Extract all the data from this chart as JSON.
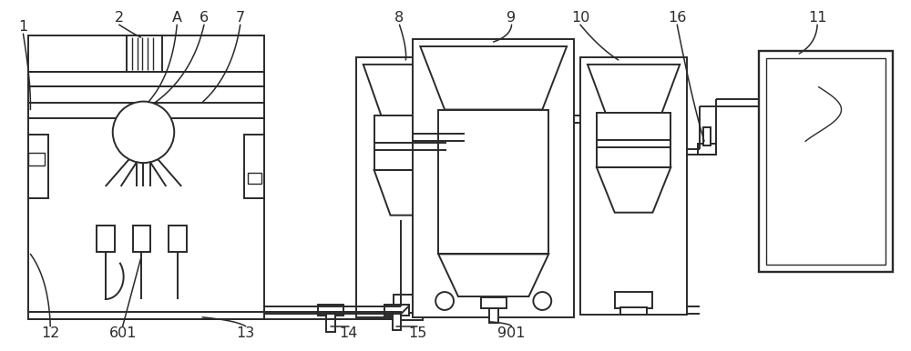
{
  "bg_color": "#ffffff",
  "line_color": "#2a2a2a",
  "lw": 1.4,
  "lw_thin": 1.0,
  "fig_width": 10.0,
  "fig_height": 3.86
}
